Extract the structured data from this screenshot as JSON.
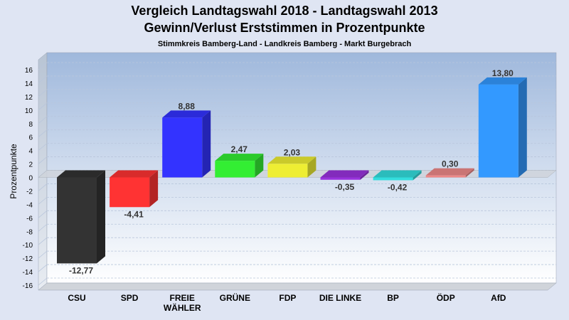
{
  "chart_data": {
    "type": "bar",
    "title": "Vergleich Landtagswahl 2018 - Landtagswahl 2013",
    "subtitle": "Gewinn/Verlust Erststimmen in Prozentpunkte",
    "caption": "Stimmkreis Bamberg-Land - Landkreis Bamberg - Markt Burgebrach",
    "ylabel": "Prozentpunkte",
    "ylim": [
      -16,
      16
    ],
    "yticks": [
      16,
      14,
      12,
      10,
      8,
      6,
      4,
      2,
      0,
      -2,
      -4,
      -6,
      -8,
      -10,
      -12,
      -14,
      -16
    ],
    "grid": true,
    "categories": [
      "CSU",
      "SPD",
      "FREIE WÄHLER",
      "GRÜNE",
      "FDP",
      "DIE LINKE",
      "BP",
      "ÖDP",
      "AfD"
    ],
    "category_lines": [
      [
        "CSU"
      ],
      [
        "SPD"
      ],
      [
        "FREIE",
        "WÄHLER"
      ],
      [
        "GRÜNE"
      ],
      [
        "FDP"
      ],
      [
        "DIE LINKE"
      ],
      [
        "BP"
      ],
      [
        "ÖDP"
      ],
      [
        "AfD"
      ]
    ],
    "values": [
      -12.77,
      -4.41,
      8.88,
      2.47,
      2.03,
      -0.35,
      -0.42,
      0.3,
      13.8
    ],
    "value_labels": [
      "-12,77",
      "-4,41",
      "8,88",
      "2,47",
      "2,03",
      "-0,35",
      "-0,42",
      "0,30",
      "13,80"
    ],
    "colors": [
      "#333333",
      "#ff3333",
      "#3333ff",
      "#33ee33",
      "#eeee33",
      "#9933dd",
      "#33dddd",
      "#ee8888",
      "#3399ff"
    ]
  }
}
